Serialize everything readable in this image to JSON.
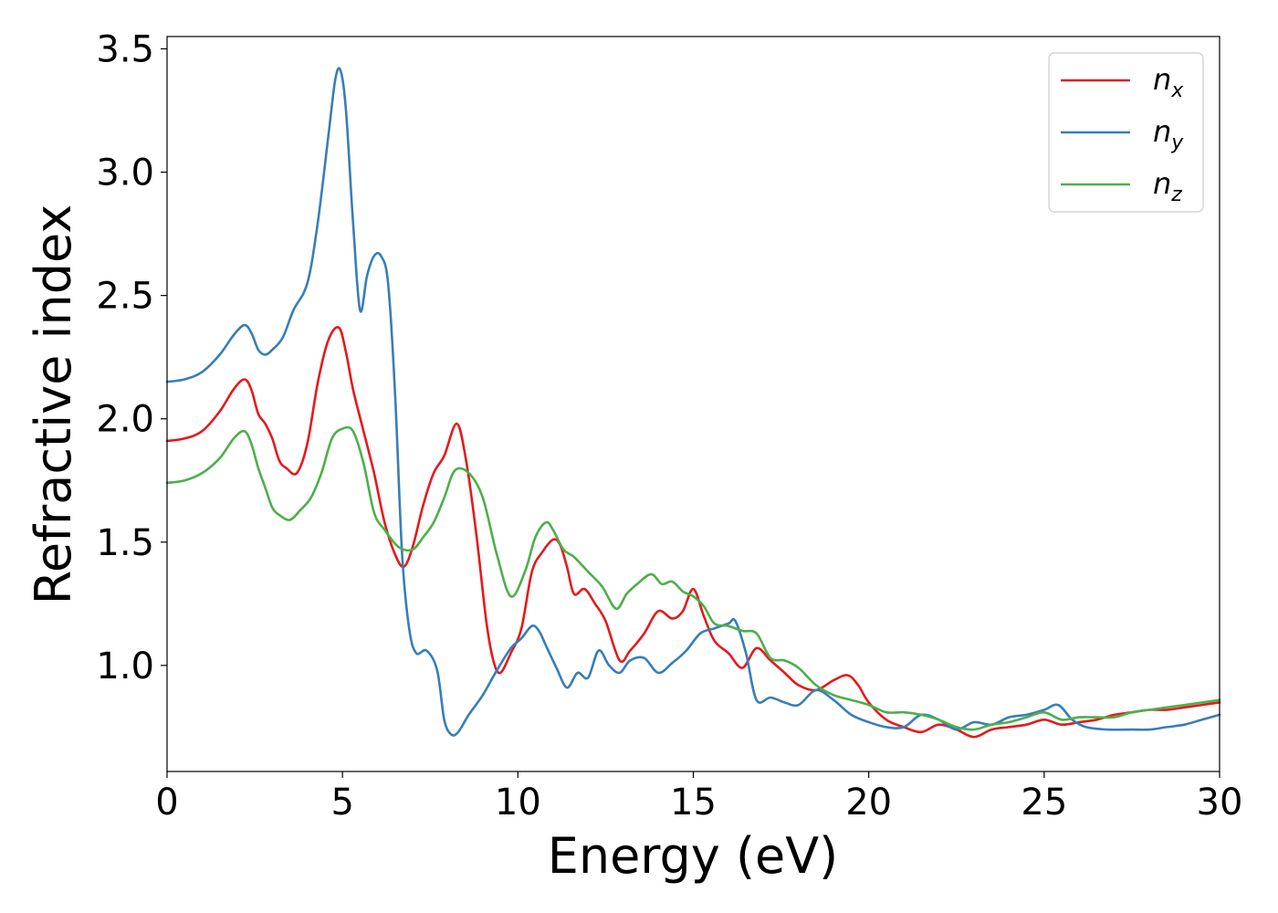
{
  "chart_data": {
    "type": "line",
    "title": "",
    "xlabel": "Energy (eV)",
    "ylabel": "Refractive index",
    "xlim": [
      0,
      30
    ],
    "ylim": [
      0.57,
      3.55
    ],
    "xticks": [
      0,
      5,
      10,
      15,
      20,
      25,
      30
    ],
    "xtick_labels": [
      "0",
      "5",
      "10",
      "15",
      "20",
      "25",
      "30"
    ],
    "yticks": [
      1.0,
      1.5,
      2.0,
      2.5,
      3.0,
      3.5
    ],
    "ytick_labels": [
      "1.0",
      "1.5",
      "2.0",
      "2.5",
      "3.0",
      "3.5"
    ],
    "grid": false,
    "legend_position": "top-right",
    "series": [
      {
        "name": "n",
        "subscript": "x",
        "color": "#e41a1c",
        "x": [
          0,
          0.5,
          1.0,
          1.5,
          1.9,
          2.2,
          2.4,
          2.6,
          2.8,
          3.0,
          3.2,
          3.4,
          3.7,
          4.0,
          4.3,
          4.6,
          4.9,
          5.1,
          5.3,
          5.6,
          5.9,
          6.2,
          6.5,
          6.75,
          7.0,
          7.3,
          7.6,
          7.9,
          8.25,
          8.5,
          8.8,
          9.1,
          9.3,
          9.5,
          9.8,
          10.1,
          10.4,
          10.7,
          11.0,
          11.2,
          11.4,
          11.6,
          11.9,
          12.2,
          12.5,
          12.9,
          13.2,
          13.6,
          14.0,
          14.4,
          14.7,
          15.0,
          15.3,
          15.6,
          16.0,
          16.4,
          16.8,
          17.2,
          17.6,
          18.0,
          18.5,
          19.0,
          19.4,
          19.7,
          20.0,
          20.5,
          21.0,
          21.5,
          22.0,
          22.5,
          23.0,
          23.5,
          24.0,
          24.5,
          25.0,
          25.5,
          26.0,
          26.5,
          27.0,
          27.5,
          28.0,
          28.5,
          29.0,
          29.5,
          30.0
        ],
        "values": [
          1.91,
          1.92,
          1.95,
          2.03,
          2.12,
          2.16,
          2.12,
          2.02,
          1.98,
          1.92,
          1.83,
          1.8,
          1.78,
          1.9,
          2.15,
          2.32,
          2.37,
          2.27,
          2.12,
          1.95,
          1.78,
          1.58,
          1.45,
          1.4,
          1.48,
          1.65,
          1.78,
          1.85,
          1.98,
          1.85,
          1.55,
          1.18,
          1.02,
          0.97,
          1.05,
          1.15,
          1.38,
          1.46,
          1.51,
          1.49,
          1.4,
          1.29,
          1.31,
          1.25,
          1.18,
          1.02,
          1.06,
          1.13,
          1.22,
          1.19,
          1.22,
          1.31,
          1.2,
          1.1,
          1.05,
          0.99,
          1.07,
          1.02,
          0.97,
          0.92,
          0.9,
          0.94,
          0.96,
          0.92,
          0.85,
          0.78,
          0.75,
          0.73,
          0.76,
          0.74,
          0.71,
          0.74,
          0.75,
          0.76,
          0.78,
          0.76,
          0.77,
          0.78,
          0.8,
          0.81,
          0.82,
          0.82,
          0.83,
          0.84,
          0.85
        ]
      },
      {
        "name": "n",
        "subscript": "y",
        "color": "#377eb8",
        "x": [
          0,
          0.5,
          1.0,
          1.5,
          1.9,
          2.2,
          2.4,
          2.6,
          2.8,
          3.0,
          3.3,
          3.6,
          4.0,
          4.3,
          4.6,
          4.8,
          4.95,
          5.1,
          5.3,
          5.5,
          5.7,
          5.9,
          6.1,
          6.3,
          6.5,
          6.7,
          6.9,
          7.1,
          7.4,
          7.7,
          7.9,
          8.1,
          8.3,
          8.6,
          9.0,
          9.4,
          9.8,
          10.1,
          10.4,
          10.6,
          10.8,
          11.1,
          11.4,
          11.7,
          12.0,
          12.3,
          12.6,
          12.9,
          13.2,
          13.6,
          14.0,
          14.4,
          14.8,
          15.2,
          15.6,
          16.0,
          16.2,
          16.5,
          16.8,
          17.2,
          17.6,
          18.0,
          18.5,
          19.0,
          19.5,
          20.0,
          20.5,
          21.0,
          21.5,
          22.0,
          22.5,
          23.0,
          23.5,
          24.0,
          24.5,
          25.0,
          25.4,
          25.8,
          26.2,
          26.8,
          27.5,
          28.0,
          28.5,
          29.0,
          29.5,
          30.0
        ],
        "values": [
          2.15,
          2.16,
          2.19,
          2.26,
          2.34,
          2.38,
          2.35,
          2.28,
          2.26,
          2.28,
          2.33,
          2.44,
          2.55,
          2.8,
          3.15,
          3.38,
          3.41,
          3.25,
          2.8,
          2.44,
          2.58,
          2.66,
          2.66,
          2.55,
          2.1,
          1.45,
          1.15,
          1.05,
          1.06,
          0.98,
          0.78,
          0.72,
          0.73,
          0.8,
          0.88,
          0.98,
          1.07,
          1.11,
          1.16,
          1.14,
          1.08,
          0.99,
          0.91,
          0.97,
          0.95,
          1.06,
          1.0,
          0.97,
          1.02,
          1.03,
          0.97,
          1.01,
          1.06,
          1.13,
          1.15,
          1.17,
          1.18,
          1.05,
          0.86,
          0.87,
          0.85,
          0.84,
          0.9,
          0.86,
          0.8,
          0.77,
          0.75,
          0.75,
          0.8,
          0.78,
          0.74,
          0.77,
          0.76,
          0.79,
          0.8,
          0.82,
          0.84,
          0.78,
          0.75,
          0.74,
          0.74,
          0.74,
          0.75,
          0.76,
          0.78,
          0.8
        ]
      },
      {
        "name": "n",
        "subscript": "z",
        "color": "#4daf4a",
        "x": [
          0,
          0.5,
          1.0,
          1.5,
          1.9,
          2.2,
          2.4,
          2.6,
          2.8,
          3.0,
          3.2,
          3.5,
          3.8,
          4.1,
          4.4,
          4.7,
          5.0,
          5.3,
          5.6,
          5.9,
          6.2,
          6.6,
          7.0,
          7.3,
          7.6,
          7.9,
          8.2,
          8.6,
          9.0,
          9.4,
          9.8,
          10.2,
          10.5,
          10.8,
          11.0,
          11.3,
          11.6,
          12.0,
          12.4,
          12.8,
          13.1,
          13.4,
          13.8,
          14.1,
          14.4,
          14.7,
          15.0,
          15.3,
          15.6,
          16.0,
          16.4,
          16.8,
          17.2,
          17.6,
          18.0,
          18.5,
          19.0,
          19.5,
          20.0,
          20.5,
          21.0,
          21.5,
          22.0,
          22.5,
          23.0,
          23.5,
          24.0,
          24.5,
          25.0,
          25.5,
          26.0,
          26.5,
          27.0,
          27.5,
          28.0,
          28.5,
          29.0,
          29.5,
          30.0
        ],
        "values": [
          1.74,
          1.75,
          1.78,
          1.84,
          1.92,
          1.95,
          1.9,
          1.8,
          1.72,
          1.64,
          1.61,
          1.59,
          1.63,
          1.68,
          1.78,
          1.92,
          1.96,
          1.95,
          1.82,
          1.62,
          1.55,
          1.48,
          1.47,
          1.52,
          1.58,
          1.68,
          1.79,
          1.78,
          1.68,
          1.45,
          1.28,
          1.38,
          1.52,
          1.58,
          1.55,
          1.47,
          1.44,
          1.38,
          1.32,
          1.23,
          1.29,
          1.33,
          1.37,
          1.33,
          1.34,
          1.3,
          1.28,
          1.24,
          1.17,
          1.16,
          1.14,
          1.13,
          1.03,
          1.02,
          0.99,
          0.92,
          0.88,
          0.86,
          0.84,
          0.81,
          0.81,
          0.8,
          0.78,
          0.75,
          0.74,
          0.76,
          0.77,
          0.79,
          0.81,
          0.78,
          0.79,
          0.79,
          0.79,
          0.81,
          0.82,
          0.83,
          0.84,
          0.85,
          0.86
        ]
      }
    ]
  }
}
